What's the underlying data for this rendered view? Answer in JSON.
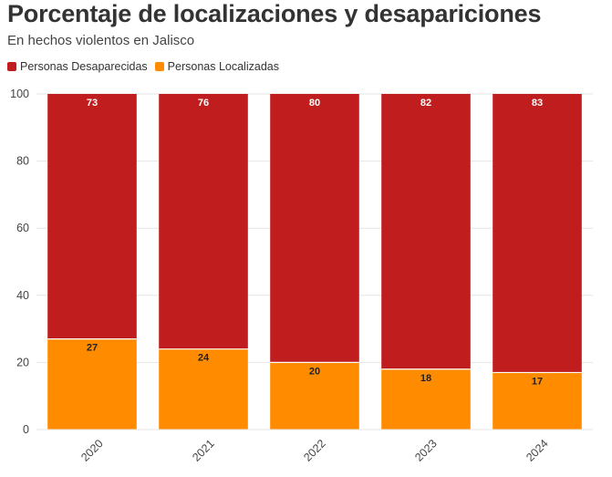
{
  "chart_data": {
    "type": "bar",
    "stacked": true,
    "title": "Porcentaje de localizaciones y desapariciones",
    "subtitle": "En hechos violentos en Jalisco",
    "xlabel": "",
    "ylabel": "",
    "ylim": [
      0,
      100
    ],
    "yticks": [
      "0",
      "20",
      "40",
      "60",
      "80",
      "100"
    ],
    "categories": [
      "2020",
      "2021",
      "2022",
      "2023",
      "2024"
    ],
    "series": [
      {
        "name": "Personas Localizadas",
        "color": "#ff8c00",
        "label_color": "#222222",
        "values": [
          27,
          24,
          20,
          18,
          17
        ]
      },
      {
        "name": "Personas Desaparecidas",
        "color": "#c01e1e",
        "label_color": "#ffffff",
        "values": [
          73,
          76,
          80,
          82,
          83
        ]
      }
    ],
    "legend": [
      "Personas Desaparecidas",
      "Personas Localizadas"
    ],
    "legend_colors": [
      "#c01e1e",
      "#ff8c00"
    ]
  }
}
